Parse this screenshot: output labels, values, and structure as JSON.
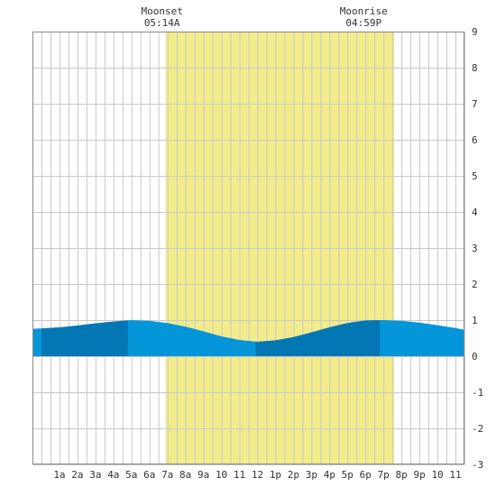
{
  "chart_data": {
    "type": "area",
    "title": "",
    "xlabel": "",
    "ylabel": "",
    "xlim": [
      -0.5,
      23.5
    ],
    "ylim": [
      -3,
      9
    ],
    "x_ticks": [
      {
        "x": 1,
        "label": "1a"
      },
      {
        "x": 2,
        "label": "2a"
      },
      {
        "x": 3,
        "label": "3a"
      },
      {
        "x": 4,
        "label": "4a"
      },
      {
        "x": 5,
        "label": "5a"
      },
      {
        "x": 6,
        "label": "6a"
      },
      {
        "x": 7,
        "label": "7a"
      },
      {
        "x": 8,
        "label": "8a"
      },
      {
        "x": 9,
        "label": "9a"
      },
      {
        "x": 10,
        "label": "10"
      },
      {
        "x": 11,
        "label": "11"
      },
      {
        "x": 12,
        "label": "12"
      },
      {
        "x": 13,
        "label": "1p"
      },
      {
        "x": 14,
        "label": "2p"
      },
      {
        "x": 15,
        "label": "3p"
      },
      {
        "x": 16,
        "label": "4p"
      },
      {
        "x": 17,
        "label": "5p"
      },
      {
        "x": 18,
        "label": "6p"
      },
      {
        "x": 19,
        "label": "7p"
      },
      {
        "x": 20,
        "label": "8p"
      },
      {
        "x": 21,
        "label": "9p"
      },
      {
        "x": 22,
        "label": "10"
      },
      {
        "x": 23,
        "label": "11"
      }
    ],
    "y_ticks": [
      -3,
      -2,
      -1,
      0,
      1,
      2,
      3,
      4,
      5,
      6,
      7,
      8,
      9
    ],
    "grid": true,
    "daylight": {
      "start": 6.9,
      "end": 19.6
    },
    "dark_bands": [
      [
        0,
        4.8
      ],
      [
        11.9,
        18.8
      ]
    ],
    "series": [
      {
        "x": [
          -0.5,
          0,
          1,
          2,
          3,
          4,
          5,
          6,
          7,
          8,
          9,
          10,
          11,
          12,
          13,
          14,
          15,
          16,
          17,
          18,
          19,
          20,
          21,
          22,
          23,
          23.5
        ],
        "values": [
          0.76,
          0.77,
          0.8,
          0.85,
          0.91,
          0.96,
          1.0,
          0.98,
          0.92,
          0.82,
          0.69,
          0.55,
          0.45,
          0.4,
          0.44,
          0.53,
          0.66,
          0.8,
          0.92,
          0.99,
          1.0,
          0.98,
          0.93,
          0.86,
          0.78,
          0.73
        ]
      }
    ],
    "annotations": [
      {
        "x": 6.7,
        "line1": "Moonset",
        "line2": "05:14A"
      },
      {
        "x": 17.9,
        "line1": "Moonrise",
        "line2": "04:59P"
      }
    ],
    "colors": {
      "daylight": "#f3ec8b",
      "water": "#0595d9",
      "water_dark": "#0377b3",
      "grid": "#c8c8c8",
      "frame": "#888888",
      "text": "#333333"
    }
  }
}
